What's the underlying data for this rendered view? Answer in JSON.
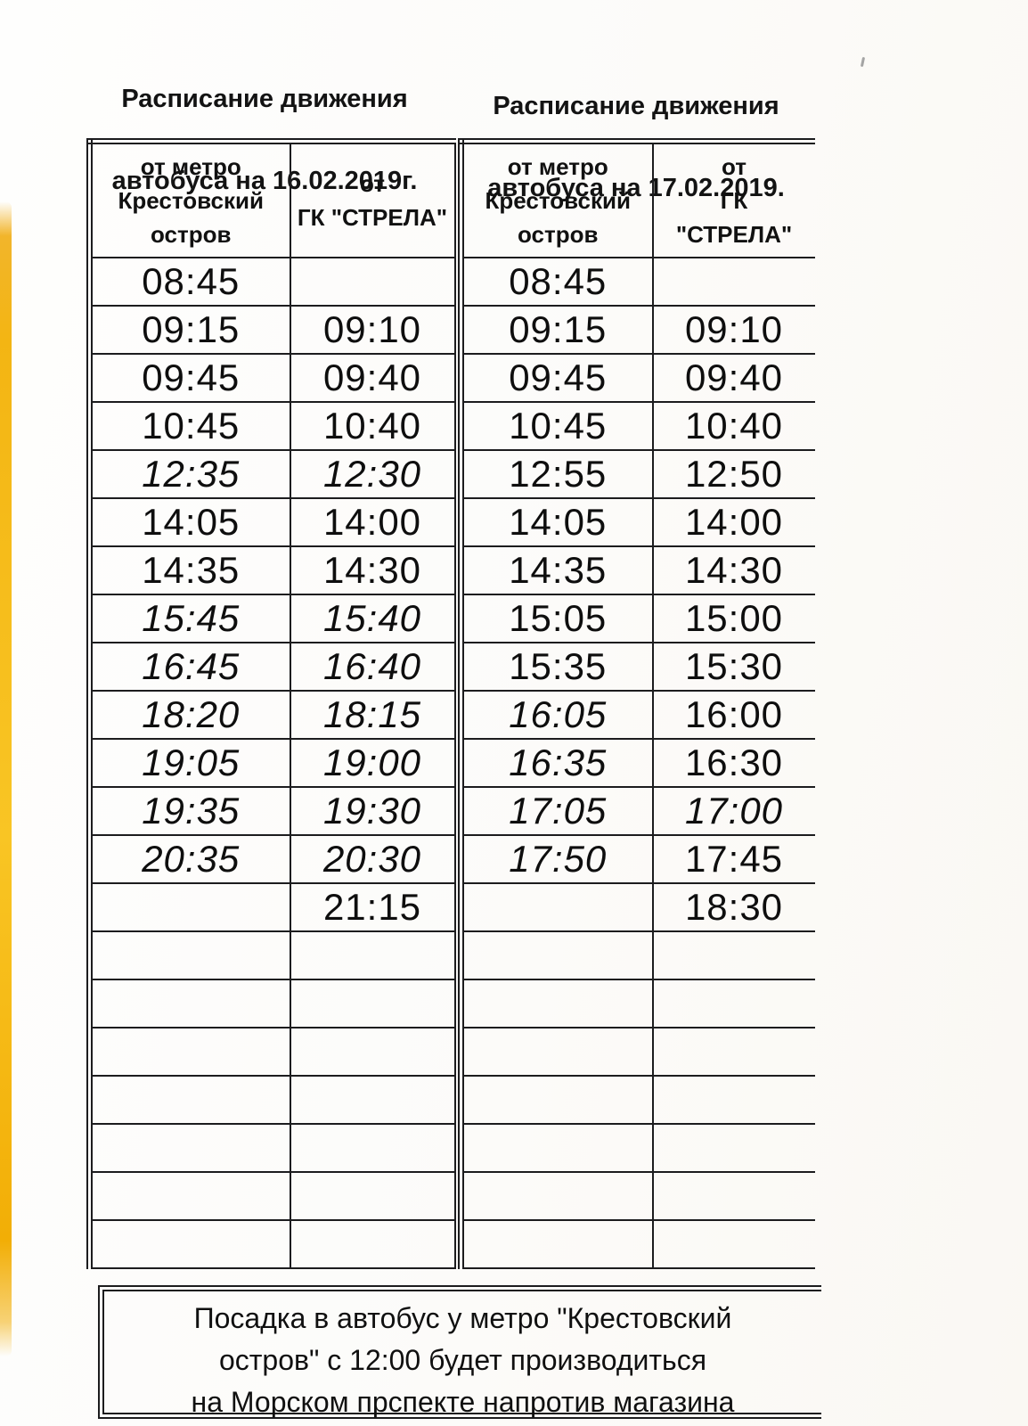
{
  "document_type": "scanned bus timetable",
  "colors": {
    "paper": "#fcfbf9",
    "ink": "#121212",
    "table_border": "#1c1c1e",
    "scan_stripe_yellow": "#f5b913"
  },
  "schedules": [
    {
      "date": "16.02.2019",
      "title_line1": "Расписание движения",
      "title_line2": "автобуса на 16.02.2019г.",
      "col1_header": "от метро\nКрестовский\nостров",
      "col2_header": "от\nГК \"СТРЕЛА\"",
      "rows": [
        {
          "from_metro": "08:45",
          "from_strela": ""
        },
        {
          "from_metro": "09:15",
          "from_strela": "09:10"
        },
        {
          "from_metro": "09:45",
          "from_strela": "09:40"
        },
        {
          "from_metro": "10:45",
          "from_strela": "10:40"
        },
        {
          "from_metro": "12:35",
          "from_strela": "12:30",
          "italic_metro": true,
          "italic_strela": true
        },
        {
          "from_metro": "14:05",
          "from_strela": "14:00"
        },
        {
          "from_metro": "14:35",
          "from_strela": "14:30"
        },
        {
          "from_metro": "15:45",
          "from_strela": "15:40",
          "italic_metro": true,
          "italic_strela": true
        },
        {
          "from_metro": "16:45",
          "from_strela": "16:40",
          "italic_metro": true,
          "italic_strela": true
        },
        {
          "from_metro": "18:20",
          "from_strela": "18:15",
          "italic_metro": true,
          "italic_strela": true
        },
        {
          "from_metro": "19:05",
          "from_strela": "19:00",
          "italic_metro": true,
          "italic_strela": true
        },
        {
          "from_metro": "19:35",
          "from_strela": "19:30",
          "italic_metro": true,
          "italic_strela": true
        },
        {
          "from_metro": "20:35",
          "from_strela": "20:30",
          "italic_metro": true,
          "italic_strela": true
        },
        {
          "from_metro": "",
          "from_strela": "21:15"
        }
      ],
      "empty_rows": 7
    },
    {
      "date": "17.02.2019",
      "title_line1": "Расписание движения",
      "title_line2": "автобуса  на 17.02.2019.",
      "col1_header": "от метро\nКрестовский\nостров",
      "col2_header": "от\nГК\n\"СТРЕЛА\"",
      "rows": [
        {
          "from_metro": "08:45",
          "from_strela": ""
        },
        {
          "from_metro": "09:15",
          "from_strela": "09:10"
        },
        {
          "from_metro": "09:45",
          "from_strela": "09:40"
        },
        {
          "from_metro": "10:45",
          "from_strela": "10:40"
        },
        {
          "from_metro": "12:55",
          "from_strela": "12:50"
        },
        {
          "from_metro": "14:05",
          "from_strela": "14:00"
        },
        {
          "from_metro": "14:35",
          "from_strela": "14:30"
        },
        {
          "from_metro": "15:05",
          "from_strela": "15:00"
        },
        {
          "from_metro": "15:35",
          "from_strela": "15:30"
        },
        {
          "from_metro": "16:05",
          "from_strela": "16:00",
          "italic_metro": true
        },
        {
          "from_metro": "16:35",
          "from_strela": "16:30",
          "italic_metro": true
        },
        {
          "from_metro": "17:05",
          "from_strela": "17:00",
          "italic_metro": true,
          "italic_strela": true
        },
        {
          "from_metro": "17:50",
          "from_strela": "17:45",
          "italic_metro": true
        },
        {
          "from_metro": "",
          "from_strela": "18:30"
        }
      ],
      "empty_rows": 7
    }
  ],
  "footer_note": "Посадка в автобус у метро \"Крестовский\nостров\" с 12:00 будет производиться\nна Морском прспекте напротив магазина"
}
